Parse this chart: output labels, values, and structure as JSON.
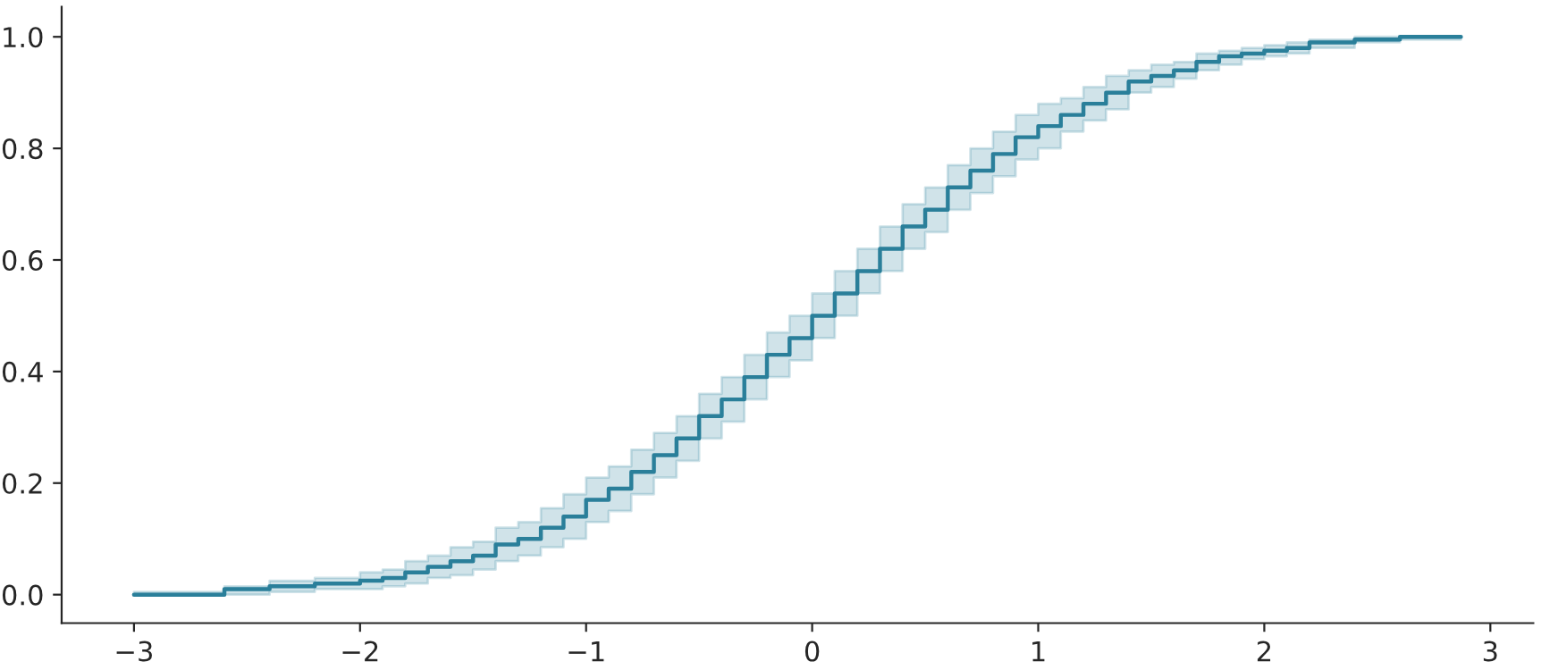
{
  "chart_data": {
    "type": "step",
    "xlim": [
      -3.32,
      3.19
    ],
    "ylim": [
      -0.051,
      1.054
    ],
    "xticks": [
      {
        "value": -3,
        "label": "−3"
      },
      {
        "value": -2,
        "label": "−2"
      },
      {
        "value": -1,
        "label": "−1"
      },
      0,
      1,
      2,
      3
    ],
    "yticks": [
      {
        "value": 0,
        "label": "0.0"
      },
      0.2,
      0.4,
      0.6,
      0.8,
      {
        "value": 1,
        "label": "1.0"
      }
    ],
    "grid": false,
    "legend": false,
    "series": [
      {
        "color": "#2a7f9a",
        "x": [
          -3.0,
          -2.6,
          -2.4,
          -2.2,
          -2.0,
          -1.9,
          -1.8,
          -1.7,
          -1.6,
          -1.5,
          -1.4,
          -1.3,
          -1.2,
          -1.1,
          -1.0,
          -0.9,
          -0.8,
          -0.7,
          -0.6,
          -0.5,
          -0.4,
          -0.3,
          -0.2,
          -0.1,
          0,
          0.1,
          0.2,
          0.3,
          0.4,
          0.5,
          0.6,
          0.7,
          0.8,
          0.9,
          1.0,
          1.1,
          1.2,
          1.3,
          1.4,
          1.5,
          1.6,
          1.7,
          1.8,
          1.9,
          2.0,
          2.1,
          2.2,
          2.4,
          2.6,
          2.8,
          2.87
        ],
        "values": [
          0.0,
          0.01,
          0.015,
          0.02,
          0.025,
          0.03,
          0.04,
          0.05,
          0.06,
          0.07,
          0.09,
          0.1,
          0.12,
          0.14,
          0.17,
          0.19,
          0.22,
          0.25,
          0.28,
          0.32,
          0.35,
          0.39,
          0.43,
          0.46,
          0.5,
          0.54,
          0.58,
          0.62,
          0.66,
          0.69,
          0.73,
          0.76,
          0.79,
          0.82,
          0.84,
          0.86,
          0.88,
          0.9,
          0.92,
          0.93,
          0.94,
          0.955,
          0.965,
          0.97,
          0.975,
          0.98,
          0.99,
          0.995,
          1.0,
          1.0,
          1.0
        ],
        "lower": [
          0,
          0,
          0.005,
          0.01,
          0.01,
          0.015,
          0.02,
          0.03,
          0.035,
          0.045,
          0.06,
          0.07,
          0.085,
          0.1,
          0.13,
          0.15,
          0.18,
          0.21,
          0.24,
          0.28,
          0.31,
          0.35,
          0.39,
          0.42,
          0.46,
          0.5,
          0.54,
          0.58,
          0.62,
          0.65,
          0.69,
          0.72,
          0.75,
          0.78,
          0.8,
          0.83,
          0.85,
          0.87,
          0.9,
          0.91,
          0.925,
          0.94,
          0.95,
          0.96,
          0.965,
          0.97,
          0.98,
          0.99,
          0.995,
          0.995,
          0.995
        ],
        "upper": [
          0.005,
          0.015,
          0.025,
          0.03,
          0.04,
          0.045,
          0.06,
          0.07,
          0.085,
          0.095,
          0.12,
          0.13,
          0.155,
          0.18,
          0.21,
          0.23,
          0.26,
          0.29,
          0.32,
          0.36,
          0.39,
          0.43,
          0.47,
          0.5,
          0.54,
          0.58,
          0.62,
          0.66,
          0.7,
          0.73,
          0.77,
          0.8,
          0.83,
          0.86,
          0.88,
          0.89,
          0.91,
          0.93,
          0.94,
          0.95,
          0.955,
          0.97,
          0.975,
          0.98,
          0.985,
          0.99,
          0.995,
          1.0,
          1.0,
          1.0,
          1.0
        ]
      }
    ]
  }
}
